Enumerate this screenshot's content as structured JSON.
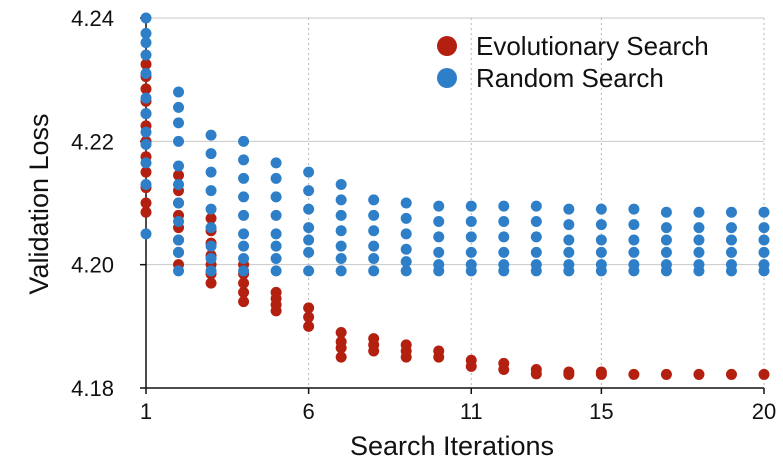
{
  "chart_data": {
    "type": "scatter",
    "xlabel": "Search Iterations",
    "ylabel": "Validation Loss",
    "xlim": [
      1,
      20
    ],
    "ylim": [
      4.18,
      4.24
    ],
    "xticks": [
      1,
      6,
      11,
      15,
      20
    ],
    "yticks": [
      4.18,
      4.2,
      4.22,
      4.24
    ],
    "ytick_labels": [
      "4.18",
      "4.20",
      "4.22",
      "4.24"
    ],
    "grid": "x-vertical dotted, y horizontal solid",
    "legend_position": "top-right",
    "series": [
      {
        "name": "Evolutionary Search",
        "color": "#b3200f",
        "points": [
          [
            1,
            4.2325
          ],
          [
            1,
            4.2305
          ],
          [
            1,
            4.2285
          ],
          [
            1,
            4.2265
          ],
          [
            1,
            4.2245
          ],
          [
            1,
            4.2225
          ],
          [
            1,
            4.22
          ],
          [
            1,
            4.2175
          ],
          [
            1,
            4.215
          ],
          [
            1,
            4.2125
          ],
          [
            1,
            4.21
          ],
          [
            1,
            4.2085
          ],
          [
            2,
            4.2145
          ],
          [
            2,
            4.212
          ],
          [
            2,
            4.21
          ],
          [
            2,
            4.208
          ],
          [
            2,
            4.206
          ],
          [
            2,
            4.204
          ],
          [
            2,
            4.202
          ],
          [
            2,
            4.2
          ],
          [
            3,
            4.2075
          ],
          [
            3,
            4.2055
          ],
          [
            3,
            4.2035
          ],
          [
            3,
            4.2015
          ],
          [
            3,
            4.2
          ],
          [
            3,
            4.1985
          ],
          [
            3,
            4.197
          ],
          [
            4,
            4.2
          ],
          [
            4,
            4.1985
          ],
          [
            4,
            4.197
          ],
          [
            4,
            4.1955
          ],
          [
            4,
            4.194
          ],
          [
            5,
            4.1955
          ],
          [
            5,
            4.1945
          ],
          [
            5,
            4.1935
          ],
          [
            5,
            4.1925
          ],
          [
            6,
            4.193
          ],
          [
            6,
            4.1915
          ],
          [
            6,
            4.19
          ],
          [
            7,
            4.189
          ],
          [
            7,
            4.1875
          ],
          [
            7,
            4.1865
          ],
          [
            7,
            4.185
          ],
          [
            8,
            4.188
          ],
          [
            8,
            4.187
          ],
          [
            8,
            4.186
          ],
          [
            9,
            4.187
          ],
          [
            9,
            4.186
          ],
          [
            9,
            4.185
          ],
          [
            10,
            4.186
          ],
          [
            10,
            4.185
          ],
          [
            11,
            4.1845
          ],
          [
            11,
            4.1835
          ],
          [
            12,
            4.184
          ],
          [
            12,
            4.183
          ],
          [
            13,
            4.183
          ],
          [
            13,
            4.1823
          ],
          [
            14,
            4.1826
          ],
          [
            14,
            4.1822
          ],
          [
            15,
            4.1826
          ],
          [
            15,
            4.1822
          ],
          [
            16,
            4.1822
          ],
          [
            17,
            4.1822
          ],
          [
            18,
            4.1822
          ],
          [
            19,
            4.1822
          ],
          [
            20,
            4.1822
          ]
        ]
      },
      {
        "name": "Random Search",
        "color": "#2e7fc8",
        "points": [
          [
            1,
            4.24
          ],
          [
            1,
            4.2375
          ],
          [
            1,
            4.236
          ],
          [
            1,
            4.234
          ],
          [
            1,
            4.231
          ],
          [
            1,
            4.227
          ],
          [
            1,
            4.2245
          ],
          [
            1,
            4.2215
          ],
          [
            1,
            4.2195
          ],
          [
            1,
            4.2165
          ],
          [
            1,
            4.213
          ],
          [
            1,
            4.205
          ],
          [
            2,
            4.228
          ],
          [
            2,
            4.2255
          ],
          [
            2,
            4.223
          ],
          [
            2,
            4.22
          ],
          [
            2,
            4.216
          ],
          [
            2,
            4.213
          ],
          [
            2,
            4.21
          ],
          [
            2,
            4.207
          ],
          [
            2,
            4.204
          ],
          [
            2,
            4.202
          ],
          [
            2,
            4.199
          ],
          [
            3,
            4.221
          ],
          [
            3,
            4.218
          ],
          [
            3,
            4.215
          ],
          [
            3,
            4.212
          ],
          [
            3,
            4.209
          ],
          [
            3,
            4.206
          ],
          [
            3,
            4.203
          ],
          [
            3,
            4.201
          ],
          [
            3,
            4.199
          ],
          [
            4,
            4.22
          ],
          [
            4,
            4.217
          ],
          [
            4,
            4.214
          ],
          [
            4,
            4.211
          ],
          [
            4,
            4.208
          ],
          [
            4,
            4.205
          ],
          [
            4,
            4.203
          ],
          [
            4,
            4.201
          ],
          [
            4,
            4.199
          ],
          [
            5,
            4.2165
          ],
          [
            5,
            4.214
          ],
          [
            5,
            4.211
          ],
          [
            5,
            4.208
          ],
          [
            5,
            4.205
          ],
          [
            5,
            4.203
          ],
          [
            5,
            4.201
          ],
          [
            5,
            4.199
          ],
          [
            6,
            4.215
          ],
          [
            6,
            4.212
          ],
          [
            6,
            4.209
          ],
          [
            6,
            4.206
          ],
          [
            6,
            4.204
          ],
          [
            6,
            4.202
          ],
          [
            6,
            4.199
          ],
          [
            7,
            4.213
          ],
          [
            7,
            4.2105
          ],
          [
            7,
            4.208
          ],
          [
            7,
            4.2055
          ],
          [
            7,
            4.203
          ],
          [
            7,
            4.201
          ],
          [
            7,
            4.199
          ],
          [
            8,
            4.2105
          ],
          [
            8,
            4.208
          ],
          [
            8,
            4.2055
          ],
          [
            8,
            4.203
          ],
          [
            8,
            4.201
          ],
          [
            8,
            4.199
          ],
          [
            9,
            4.21
          ],
          [
            9,
            4.2075
          ],
          [
            9,
            4.205
          ],
          [
            9,
            4.2025
          ],
          [
            9,
            4.2005
          ],
          [
            9,
            4.199
          ],
          [
            10,
            4.2095
          ],
          [
            10,
            4.207
          ],
          [
            10,
            4.2045
          ],
          [
            10,
            4.202
          ],
          [
            10,
            4.2
          ],
          [
            10,
            4.199
          ],
          [
            11,
            4.2095
          ],
          [
            11,
            4.207
          ],
          [
            11,
            4.2045
          ],
          [
            11,
            4.202
          ],
          [
            11,
            4.2
          ],
          [
            11,
            4.199
          ],
          [
            12,
            4.2095
          ],
          [
            12,
            4.207
          ],
          [
            12,
            4.2045
          ],
          [
            12,
            4.202
          ],
          [
            12,
            4.2
          ],
          [
            12,
            4.199
          ],
          [
            13,
            4.2095
          ],
          [
            13,
            4.207
          ],
          [
            13,
            4.2045
          ],
          [
            13,
            4.202
          ],
          [
            13,
            4.2
          ],
          [
            13,
            4.199
          ],
          [
            14,
            4.209
          ],
          [
            14,
            4.2065
          ],
          [
            14,
            4.204
          ],
          [
            14,
            4.202
          ],
          [
            14,
            4.2
          ],
          [
            14,
            4.199
          ],
          [
            15,
            4.209
          ],
          [
            15,
            4.2065
          ],
          [
            15,
            4.204
          ],
          [
            15,
            4.202
          ],
          [
            15,
            4.2
          ],
          [
            15,
            4.199
          ],
          [
            16,
            4.209
          ],
          [
            16,
            4.2065
          ],
          [
            16,
            4.204
          ],
          [
            16,
            4.202
          ],
          [
            16,
            4.2
          ],
          [
            16,
            4.199
          ],
          [
            17,
            4.2085
          ],
          [
            17,
            4.206
          ],
          [
            17,
            4.204
          ],
          [
            17,
            4.202
          ],
          [
            17,
            4.2
          ],
          [
            17,
            4.199
          ],
          [
            18,
            4.2085
          ],
          [
            18,
            4.206
          ],
          [
            18,
            4.204
          ],
          [
            18,
            4.202
          ],
          [
            18,
            4.2
          ],
          [
            18,
            4.199
          ],
          [
            19,
            4.2085
          ],
          [
            19,
            4.206
          ],
          [
            19,
            4.204
          ],
          [
            19,
            4.202
          ],
          [
            19,
            4.2
          ],
          [
            19,
            4.199
          ],
          [
            20,
            4.2085
          ],
          [
            20,
            4.206
          ],
          [
            20,
            4.204
          ],
          [
            20,
            4.202
          ],
          [
            20,
            4.2
          ],
          [
            20,
            4.199
          ]
        ]
      }
    ]
  }
}
